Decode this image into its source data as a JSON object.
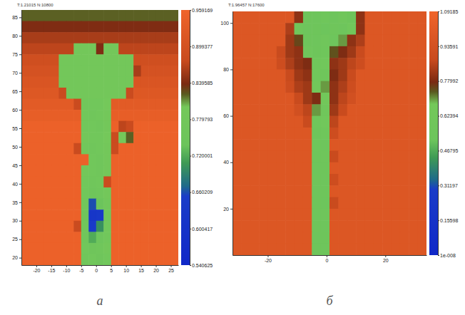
{
  "chart_data": [
    {
      "type": "heatmap",
      "title": "T:1.21015 N:10800",
      "label": "а",
      "x": [
        -25,
        -22.5,
        -20,
        -17.5,
        -15,
        -12.5,
        -10,
        -7.5,
        -5,
        -2.5,
        0,
        2.5,
        5,
        7.5,
        10,
        12.5,
        15,
        17.5,
        20,
        22.5,
        25,
        27.5
      ],
      "y": [
        87,
        84,
        81,
        78,
        75,
        72,
        69,
        66,
        63,
        60,
        57,
        54,
        51,
        48,
        45,
        42,
        39,
        36,
        33,
        30,
        27,
        24,
        21,
        18
      ],
      "z": [
        [
          0.82,
          0.82,
          0.82,
          0.82,
          0.82,
          0.82,
          0.82,
          0.82,
          0.82,
          0.82,
          0.82,
          0.82,
          0.82,
          0.82,
          0.82,
          0.82,
          0.82,
          0.82,
          0.82,
          0.82,
          0.82
        ],
        [
          0.84,
          0.84,
          0.84,
          0.84,
          0.84,
          0.84,
          0.84,
          0.84,
          0.84,
          0.84,
          0.84,
          0.84,
          0.84,
          0.84,
          0.84,
          0.84,
          0.84,
          0.84,
          0.84,
          0.84,
          0.84
        ],
        [
          0.86,
          0.86,
          0.86,
          0.86,
          0.86,
          0.86,
          0.86,
          0.86,
          0.86,
          0.86,
          0.86,
          0.86,
          0.86,
          0.86,
          0.86,
          0.86,
          0.86,
          0.86,
          0.86,
          0.86,
          0.86
        ],
        [
          0.87,
          0.87,
          0.87,
          0.87,
          0.87,
          0.87,
          0.87,
          0.79,
          0.79,
          0.79,
          0.84,
          0.79,
          0.79,
          0.87,
          0.87,
          0.87,
          0.87,
          0.87,
          0.87,
          0.87,
          0.87
        ],
        [
          0.89,
          0.89,
          0.89,
          0.89,
          0.89,
          0.79,
          0.79,
          0.79,
          0.79,
          0.79,
          0.79,
          0.79,
          0.79,
          0.79,
          0.79,
          0.89,
          0.89,
          0.89,
          0.89,
          0.89,
          0.89
        ],
        [
          0.9,
          0.9,
          0.9,
          0.9,
          0.9,
          0.79,
          0.79,
          0.79,
          0.79,
          0.79,
          0.79,
          0.79,
          0.79,
          0.79,
          0.79,
          0.86,
          0.9,
          0.9,
          0.9,
          0.9,
          0.9
        ],
        [
          0.91,
          0.91,
          0.91,
          0.91,
          0.91,
          0.79,
          0.79,
          0.79,
          0.79,
          0.79,
          0.79,
          0.79,
          0.79,
          0.79,
          0.79,
          0.91,
          0.91,
          0.91,
          0.91,
          0.91,
          0.91
        ],
        [
          0.92,
          0.92,
          0.92,
          0.92,
          0.92,
          0.88,
          0.79,
          0.79,
          0.79,
          0.79,
          0.79,
          0.79,
          0.79,
          0.79,
          0.88,
          0.92,
          0.92,
          0.92,
          0.92,
          0.92,
          0.92
        ],
        [
          0.93,
          0.93,
          0.93,
          0.93,
          0.93,
          0.93,
          0.93,
          0.88,
          0.78,
          0.78,
          0.78,
          0.8,
          0.93,
          0.93,
          0.93,
          0.93,
          0.93,
          0.93,
          0.93,
          0.93,
          0.93
        ],
        [
          0.94,
          0.94,
          0.94,
          0.94,
          0.94,
          0.94,
          0.94,
          0.94,
          0.78,
          0.77,
          0.78,
          0.79,
          0.94,
          0.94,
          0.94,
          0.94,
          0.94,
          0.94,
          0.94,
          0.94,
          0.94
        ],
        [
          0.95,
          0.95,
          0.95,
          0.95,
          0.95,
          0.95,
          0.95,
          0.95,
          0.78,
          0.78,
          0.77,
          0.79,
          0.95,
          0.87,
          0.88,
          0.95,
          0.95,
          0.95,
          0.95,
          0.95,
          0.95
        ],
        [
          0.95,
          0.95,
          0.95,
          0.95,
          0.95,
          0.95,
          0.95,
          0.95,
          0.79,
          0.78,
          0.78,
          0.8,
          0.88,
          0.8,
          0.82,
          0.95,
          0.95,
          0.95,
          0.95,
          0.95,
          0.95
        ],
        [
          0.95,
          0.95,
          0.95,
          0.95,
          0.95,
          0.95,
          0.95,
          0.88,
          0.78,
          0.77,
          0.78,
          0.79,
          0.88,
          0.95,
          0.95,
          0.95,
          0.95,
          0.95,
          0.95,
          0.95,
          0.95
        ],
        [
          0.95,
          0.95,
          0.95,
          0.95,
          0.95,
          0.95,
          0.95,
          0.95,
          0.95,
          0.78,
          0.77,
          0.79,
          0.95,
          0.95,
          0.95,
          0.95,
          0.95,
          0.95,
          0.95,
          0.95,
          0.95
        ],
        [
          0.95,
          0.95,
          0.95,
          0.95,
          0.95,
          0.95,
          0.95,
          0.95,
          0.79,
          0.78,
          0.77,
          0.79,
          0.95,
          0.95,
          0.95,
          0.95,
          0.95,
          0.95,
          0.95,
          0.95,
          0.95
        ],
        [
          0.95,
          0.95,
          0.95,
          0.95,
          0.95,
          0.95,
          0.95,
          0.95,
          0.78,
          0.77,
          0.78,
          0.88,
          0.95,
          0.95,
          0.95,
          0.95,
          0.95,
          0.95,
          0.95,
          0.95,
          0.95
        ],
        [
          0.95,
          0.95,
          0.95,
          0.95,
          0.95,
          0.95,
          0.95,
          0.95,
          0.78,
          0.76,
          0.77,
          0.79,
          0.95,
          0.95,
          0.95,
          0.95,
          0.95,
          0.95,
          0.95,
          0.95,
          0.95
        ],
        [
          0.95,
          0.95,
          0.95,
          0.95,
          0.95,
          0.95,
          0.95,
          0.95,
          0.78,
          0.66,
          0.74,
          0.78,
          0.95,
          0.95,
          0.95,
          0.95,
          0.95,
          0.95,
          0.95,
          0.95,
          0.95
        ],
        [
          0.95,
          0.95,
          0.95,
          0.95,
          0.95,
          0.95,
          0.95,
          0.95,
          0.76,
          0.62,
          0.63,
          0.77,
          0.95,
          0.95,
          0.95,
          0.95,
          0.95,
          0.95,
          0.95,
          0.95,
          0.95
        ],
        [
          0.95,
          0.95,
          0.95,
          0.95,
          0.95,
          0.95,
          0.95,
          0.88,
          0.77,
          0.64,
          0.7,
          0.78,
          0.95,
          0.95,
          0.95,
          0.95,
          0.95,
          0.95,
          0.95,
          0.95,
          0.95
        ],
        [
          0.95,
          0.95,
          0.95,
          0.95,
          0.95,
          0.95,
          0.95,
          0.95,
          0.77,
          0.72,
          0.75,
          0.78,
          0.95,
          0.95,
          0.95,
          0.95,
          0.95,
          0.95,
          0.95,
          0.95,
          0.95
        ],
        [
          0.95,
          0.95,
          0.95,
          0.95,
          0.95,
          0.95,
          0.95,
          0.95,
          0.78,
          0.76,
          0.77,
          0.79,
          0.95,
          0.95,
          0.95,
          0.95,
          0.95,
          0.95,
          0.95,
          0.95,
          0.95
        ],
        [
          0.95,
          0.95,
          0.95,
          0.95,
          0.95,
          0.95,
          0.95,
          0.95,
          0.77,
          0.78,
          0.76,
          0.78,
          0.95,
          0.95,
          0.95,
          0.95,
          0.95,
          0.95,
          0.95,
          0.95,
          0.95
        ]
      ],
      "xlim": [
        -25,
        27.5
      ],
      "ylim": [
        18,
        87
      ],
      "xticks": [
        -20,
        -15,
        -10,
        -5,
        0,
        5,
        10,
        15,
        20,
        25
      ],
      "yticks": [
        20,
        25,
        30,
        35,
        40,
        45,
        50,
        55,
        60,
        65,
        70,
        75,
        80,
        85
      ],
      "zlim": [
        0.540625,
        0.959169
      ],
      "zticks": [
        0.540625,
        0.600417,
        0.660209,
        0.720001,
        0.779793,
        0.839585,
        0.899377,
        0.959169
      ]
    },
    {
      "type": "heatmap",
      "title": "T:1.96457 N:17600",
      "label": "б",
      "x": [
        -32,
        -29,
        -26,
        -23,
        -20,
        -17,
        -14,
        -11,
        -8,
        -5,
        -2,
        1,
        4,
        7,
        10,
        13,
        16,
        19,
        22,
        25,
        28,
        31,
        34
      ],
      "y": [
        105,
        100,
        95,
        90,
        85,
        80,
        75,
        70,
        65,
        60,
        55,
        50,
        45,
        40,
        35,
        30,
        25,
        20,
        15,
        10,
        5,
        0
      ],
      "z": [
        [
          0.98,
          0.98,
          0.98,
          0.98,
          0.98,
          0.98,
          0.98,
          0.8,
          0.56,
          0.55,
          0.58,
          0.55,
          0.6,
          0.56,
          0.8,
          0.98,
          0.98,
          0.98,
          0.98,
          0.98,
          0.98,
          0.98
        ],
        [
          0.98,
          0.98,
          0.98,
          0.98,
          0.98,
          0.98,
          0.84,
          0.6,
          0.55,
          0.56,
          0.54,
          0.57,
          0.55,
          0.62,
          0.8,
          0.98,
          0.98,
          0.98,
          0.98,
          0.98,
          0.98,
          0.98
        ],
        [
          0.98,
          0.98,
          0.98,
          0.98,
          0.98,
          0.98,
          0.82,
          0.75,
          0.56,
          0.55,
          0.6,
          0.55,
          0.7,
          0.8,
          0.84,
          0.98,
          0.98,
          0.98,
          0.98,
          0.98,
          0.98,
          0.98
        ],
        [
          0.98,
          0.98,
          0.98,
          0.98,
          0.98,
          0.88,
          0.82,
          0.8,
          0.6,
          0.56,
          0.58,
          0.74,
          0.78,
          0.82,
          0.88,
          0.98,
          0.98,
          0.98,
          0.98,
          0.98,
          0.98,
          0.98
        ],
        [
          0.98,
          0.98,
          0.98,
          0.98,
          0.98,
          0.9,
          0.84,
          0.8,
          0.78,
          0.6,
          0.62,
          0.8,
          0.82,
          0.86,
          0.9,
          0.98,
          0.98,
          0.98,
          0.98,
          0.98,
          0.98,
          0.98
        ],
        [
          0.98,
          0.98,
          0.98,
          0.98,
          0.98,
          0.98,
          0.88,
          0.82,
          0.8,
          0.62,
          0.58,
          0.78,
          0.82,
          0.88,
          0.98,
          0.98,
          0.98,
          0.98,
          0.98,
          0.98,
          0.98,
          0.98
        ],
        [
          0.98,
          0.98,
          0.98,
          0.98,
          0.98,
          0.98,
          0.9,
          0.84,
          0.82,
          0.64,
          0.7,
          0.8,
          0.84,
          0.9,
          0.98,
          0.98,
          0.98,
          0.98,
          0.98,
          0.98,
          0.98,
          0.98
        ],
        [
          0.98,
          0.98,
          0.98,
          0.98,
          0.98,
          0.98,
          0.98,
          0.88,
          0.82,
          0.78,
          0.64,
          0.8,
          0.86,
          0.92,
          0.98,
          0.98,
          0.98,
          0.98,
          0.98,
          0.98,
          0.98,
          0.98
        ],
        [
          0.98,
          0.98,
          0.98,
          0.98,
          0.98,
          0.98,
          0.98,
          0.92,
          0.86,
          0.7,
          0.6,
          0.82,
          0.88,
          0.98,
          0.98,
          0.98,
          0.98,
          0.98,
          0.98,
          0.98,
          0.98,
          0.98
        ],
        [
          0.98,
          0.98,
          0.98,
          0.98,
          0.98,
          0.98,
          0.98,
          0.98,
          0.88,
          0.58,
          0.62,
          0.86,
          0.98,
          0.98,
          0.98,
          0.98,
          0.98,
          0.98,
          0.98,
          0.98,
          0.98,
          0.98
        ],
        [
          0.98,
          0.98,
          0.98,
          0.98,
          0.98,
          0.98,
          0.98,
          0.98,
          0.98,
          0.56,
          0.58,
          0.9,
          0.98,
          0.98,
          0.98,
          0.98,
          0.98,
          0.98,
          0.98,
          0.98,
          0.98,
          0.98
        ],
        [
          0.98,
          0.98,
          0.98,
          0.98,
          0.98,
          0.98,
          0.98,
          0.98,
          0.98,
          0.58,
          0.55,
          0.98,
          0.98,
          0.98,
          0.98,
          0.98,
          0.98,
          0.98,
          0.98,
          0.98,
          0.98,
          0.98
        ],
        [
          0.98,
          0.98,
          0.98,
          0.98,
          0.98,
          0.98,
          0.98,
          0.98,
          0.98,
          0.56,
          0.57,
          0.88,
          0.98,
          0.98,
          0.98,
          0.98,
          0.98,
          0.98,
          0.98,
          0.98,
          0.98,
          0.98
        ],
        [
          0.98,
          0.98,
          0.98,
          0.98,
          0.98,
          0.98,
          0.98,
          0.98,
          0.98,
          0.55,
          0.56,
          0.98,
          0.98,
          0.98,
          0.98,
          0.98,
          0.98,
          0.98,
          0.98,
          0.98,
          0.98,
          0.98
        ],
        [
          0.98,
          0.98,
          0.98,
          0.98,
          0.98,
          0.98,
          0.98,
          0.98,
          0.98,
          0.57,
          0.55,
          0.9,
          0.98,
          0.98,
          0.98,
          0.98,
          0.98,
          0.98,
          0.98,
          0.98,
          0.98,
          0.98
        ],
        [
          0.98,
          0.98,
          0.98,
          0.98,
          0.98,
          0.98,
          0.98,
          0.98,
          0.98,
          0.55,
          0.56,
          0.98,
          0.98,
          0.98,
          0.98,
          0.98,
          0.98,
          0.98,
          0.98,
          0.98,
          0.98,
          0.98
        ],
        [
          0.98,
          0.98,
          0.98,
          0.98,
          0.98,
          0.98,
          0.98,
          0.98,
          0.98,
          0.56,
          0.54,
          0.88,
          0.98,
          0.98,
          0.98,
          0.98,
          0.98,
          0.98,
          0.98,
          0.98,
          0.98,
          0.98
        ],
        [
          0.98,
          0.98,
          0.98,
          0.98,
          0.98,
          0.98,
          0.98,
          0.98,
          0.98,
          0.55,
          0.57,
          0.98,
          0.98,
          0.98,
          0.98,
          0.98,
          0.98,
          0.98,
          0.98,
          0.98,
          0.98,
          0.98
        ],
        [
          0.98,
          0.98,
          0.98,
          0.98,
          0.98,
          0.98,
          0.98,
          0.98,
          0.98,
          0.57,
          0.55,
          0.98,
          0.98,
          0.98,
          0.98,
          0.98,
          0.98,
          0.98,
          0.98,
          0.98,
          0.98,
          0.98
        ],
        [
          0.98,
          0.98,
          0.98,
          0.98,
          0.98,
          0.98,
          0.98,
          0.98,
          0.98,
          0.55,
          0.56,
          0.98,
          0.98,
          0.98,
          0.98,
          0.98,
          0.98,
          0.98,
          0.98,
          0.98,
          0.98,
          0.98
        ],
        [
          0.98,
          0.98,
          0.98,
          0.98,
          0.98,
          0.98,
          0.98,
          0.98,
          0.98,
          0.56,
          0.55,
          0.98,
          0.98,
          0.98,
          0.98,
          0.98,
          0.98,
          0.98,
          0.98,
          0.98,
          0.98,
          0.98
        ]
      ],
      "xlim": [
        -32,
        34
      ],
      "ylim": [
        0,
        105
      ],
      "xticks": [
        -20,
        0,
        20
      ],
      "yticks": [
        20,
        40,
        60,
        80,
        100
      ],
      "zlim": [
        1e-08,
        1.09185
      ],
      "zticks": [
        {
          "value": 1e-08,
          "label": "1e-008"
        },
        0.15598,
        0.31197,
        0.46795,
        0.62394,
        0.77992,
        0.93591,
        1.09185
      ]
    }
  ]
}
